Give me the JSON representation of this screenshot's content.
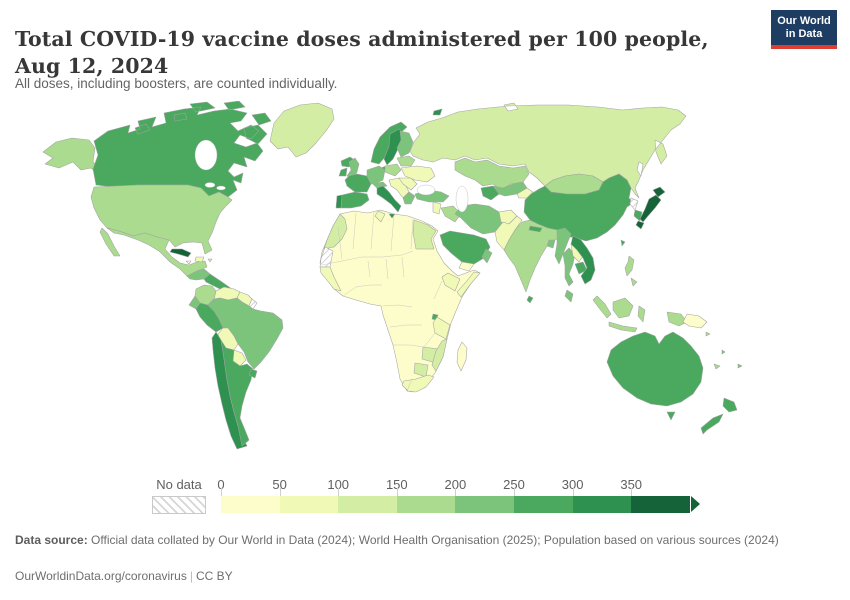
{
  "header": {
    "title": "Total COVID-19 vaccine doses administered per 100 people, Aug 12, 2024",
    "subtitle": "All doses, including boosters, are counted individually."
  },
  "logo": {
    "line1": "Our World",
    "line2": "in Data",
    "bg_color": "#1d3d63",
    "accent_color": "#dc3e32"
  },
  "chart_data": {
    "type": "choropleth",
    "title": "Total COVID-19 vaccine doses administered per 100 people",
    "date_label": "Aug 12, 2024",
    "unit": "vaccine doses administered per 100 people",
    "legend": {
      "no_data_label": "No data",
      "ticks": [
        "0",
        "50",
        "100",
        "150",
        "200",
        "250",
        "300",
        "350"
      ],
      "bins": [
        {
          "range": "0-50",
          "color": "#fdfdcb"
        },
        {
          "range": "50-100",
          "color": "#f0f9b6"
        },
        {
          "range": "100-150",
          "color": "#d4eda4"
        },
        {
          "range": "150-200",
          "color": "#abdb8e"
        },
        {
          "range": "200-250",
          "color": "#7cc47c"
        },
        {
          "range": "250-300",
          "color": "#4aa95f"
        },
        {
          "range": "300-350",
          "color": "#2e9150"
        },
        {
          "range": "350+",
          "color": "#156339"
        }
      ]
    },
    "countries": [
      {
        "id": "alaska",
        "bin": 3
      },
      {
        "id": "canada",
        "bin": 5
      },
      {
        "id": "usa",
        "bin": 3
      },
      {
        "id": "greenland",
        "bin": 2
      },
      {
        "id": "mexico",
        "bin": 3
      },
      {
        "id": "central-america-north",
        "bin": 4
      },
      {
        "id": "central-america-south",
        "bin": 5
      },
      {
        "id": "cuba",
        "bin": 7
      },
      {
        "id": "jamaica",
        "bin": 0
      },
      {
        "id": "hispaniola",
        "bin": 1
      },
      {
        "id": "puerto-rico",
        "bin": 2
      },
      {
        "id": "colombia",
        "bin": 3
      },
      {
        "id": "venezuela",
        "bin": 1
      },
      {
        "id": "guyanas",
        "bin": 1
      },
      {
        "id": "french-guiana",
        "bin": -1
      },
      {
        "id": "ecuador",
        "bin": 4
      },
      {
        "id": "peru",
        "bin": 5
      },
      {
        "id": "brazil",
        "bin": 4
      },
      {
        "id": "bolivia",
        "bin": 1
      },
      {
        "id": "paraguay",
        "bin": 1
      },
      {
        "id": "chile",
        "bin": 6
      },
      {
        "id": "argentina",
        "bin": 5
      },
      {
        "id": "uruguay",
        "bin": 5
      },
      {
        "id": "iceland",
        "bin": 5
      },
      {
        "id": "ireland",
        "bin": 5
      },
      {
        "id": "uk",
        "bin": 4
      },
      {
        "id": "portugal",
        "bin": 6
      },
      {
        "id": "spain",
        "bin": 5
      },
      {
        "id": "france",
        "bin": 5
      },
      {
        "id": "norway",
        "bin": 5
      },
      {
        "id": "svalbard",
        "bin": 6
      },
      {
        "id": "sweden",
        "bin": 6
      },
      {
        "id": "finland",
        "bin": 4
      },
      {
        "id": "denmark",
        "bin": 5
      },
      {
        "id": "germany",
        "bin": 4
      },
      {
        "id": "alps",
        "bin": 4
      },
      {
        "id": "italy",
        "bin": 6
      },
      {
        "id": "poland",
        "bin": 3
      },
      {
        "id": "balkans",
        "bin": 1
      },
      {
        "id": "greece",
        "bin": 4
      },
      {
        "id": "romania-bulgaria",
        "bin": 1
      },
      {
        "id": "ukraine",
        "bin": 1
      },
      {
        "id": "belarus-baltics",
        "bin": 3
      },
      {
        "id": "russia",
        "bin": 2
      },
      {
        "id": "kazakhstan",
        "bin": 3
      },
      {
        "id": "turkmenistan",
        "bin": 5
      },
      {
        "id": "uzbekistan",
        "bin": 4
      },
      {
        "id": "kyrgyz-tajik",
        "bin": 1
      },
      {
        "id": "afghanistan",
        "bin": 1
      },
      {
        "id": "pakistan",
        "bin": 1
      },
      {
        "id": "india",
        "bin": 3
      },
      {
        "id": "nepal",
        "bin": 5
      },
      {
        "id": "bangladesh",
        "bin": 4
      },
      {
        "id": "sri-lanka",
        "bin": 5
      },
      {
        "id": "turkey",
        "bin": 4
      },
      {
        "id": "levant",
        "bin": 1
      },
      {
        "id": "iraq",
        "bin": 3
      },
      {
        "id": "iran",
        "bin": 4
      },
      {
        "id": "arabia",
        "bin": 5
      },
      {
        "id": "yemen",
        "bin": 0
      },
      {
        "id": "oman",
        "bin": 4
      },
      {
        "id": "china",
        "bin": 5
      },
      {
        "id": "mongolia",
        "bin": 3
      },
      {
        "id": "north-korea",
        "bin": -1
      },
      {
        "id": "south-korea",
        "bin": 5
      },
      {
        "id": "japan",
        "bin": 7
      },
      {
        "id": "taiwan",
        "bin": 5
      },
      {
        "id": "myanmar",
        "bin": 4
      },
      {
        "id": "thailand",
        "bin": 4
      },
      {
        "id": "laos",
        "bin": 1
      },
      {
        "id": "cambodia",
        "bin": 5
      },
      {
        "id": "vietnam",
        "bin": 6
      },
      {
        "id": "malaysia",
        "bin": 4
      },
      {
        "id": "sumatra",
        "bin": 3
      },
      {
        "id": "java",
        "bin": 3
      },
      {
        "id": "borneo",
        "bin": 3
      },
      {
        "id": "sulawesi",
        "bin": 3
      },
      {
        "id": "west-papua",
        "bin": 3
      },
      {
        "id": "png",
        "bin": 0
      },
      {
        "id": "philippines",
        "bin": 3
      },
      {
        "id": "australia",
        "bin": 5
      },
      {
        "id": "tasmania",
        "bin": 5
      },
      {
        "id": "nz-north",
        "bin": 5
      },
      {
        "id": "nz-south",
        "bin": 5
      },
      {
        "id": "new-caledonia",
        "bin": 3
      },
      {
        "id": "fiji",
        "bin": 4
      },
      {
        "id": "solomon",
        "bin": 3
      },
      {
        "id": "vanuatu",
        "bin": 4
      },
      {
        "id": "africa-base",
        "bin": 0
      },
      {
        "id": "morocco",
        "bin": 2
      },
      {
        "id": "western-sahara",
        "bin": -1
      },
      {
        "id": "senegal-strip",
        "bin": 1
      },
      {
        "id": "tunisia",
        "bin": 1
      },
      {
        "id": "egypt",
        "bin": 2
      },
      {
        "id": "ethiopia",
        "bin": 1
      },
      {
        "id": "somalia",
        "bin": 1
      },
      {
        "id": "rwanda",
        "bin": 5
      },
      {
        "id": "tanzania",
        "bin": 1
      },
      {
        "id": "zambia-zimbabwe",
        "bin": 2
      },
      {
        "id": "mozambique",
        "bin": 2
      },
      {
        "id": "botswana",
        "bin": 2
      },
      {
        "id": "south-africa",
        "bin": 1
      },
      {
        "id": "madagascar",
        "bin": 0
      }
    ]
  },
  "footer": {
    "datasource_label": "Data source:",
    "datasource_text": " Official data collated by Our World in Data (2024); World Health Organisation (2025); Population based on various sources (2024)",
    "link": "OurWorldinData.org/coronavirus",
    "separator": "|",
    "license": "CC BY"
  }
}
